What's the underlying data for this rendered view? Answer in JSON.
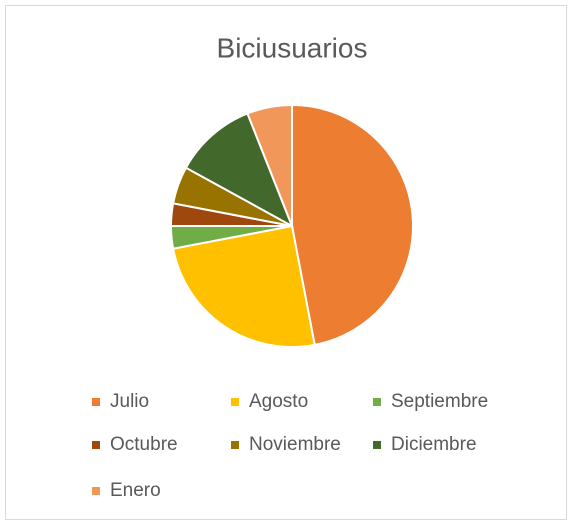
{
  "chart_data": {
    "type": "pie",
    "title": "Biciusuarios",
    "categories": [
      "Julio",
      "Agosto",
      "Septiembre",
      "Octubre",
      "Noviembre",
      "Diciembre",
      "Enero"
    ],
    "values": [
      47,
      25,
      3,
      3,
      5,
      11,
      6
    ],
    "colors": [
      "#ED7D31",
      "#FFC000",
      "#70AD47",
      "#9E480E",
      "#997300",
      "#43682B",
      "#F1975A"
    ],
    "legend": "bottom"
  }
}
